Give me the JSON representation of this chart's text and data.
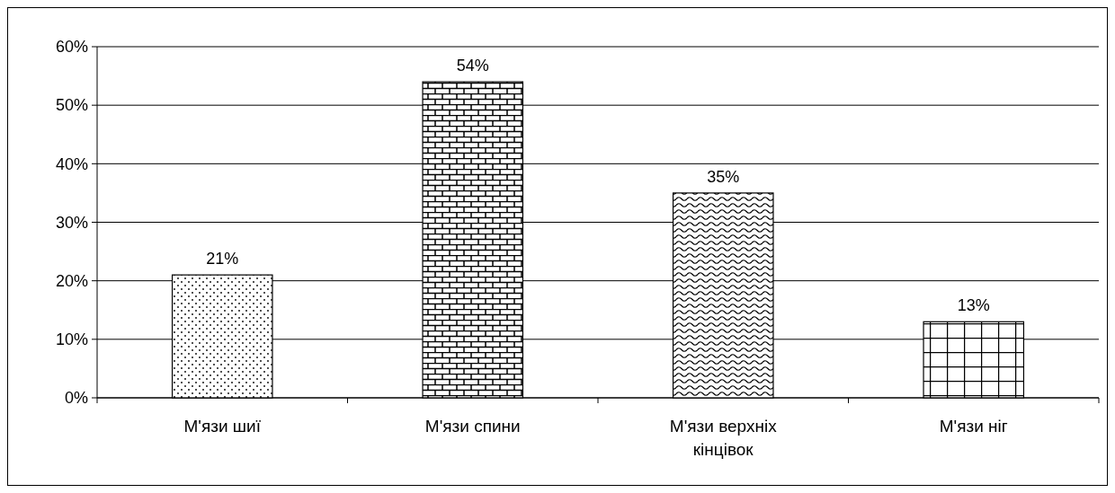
{
  "chart_data": {
    "type": "bar",
    "categories": [
      "М'язи шиї",
      "М'язи спини",
      "М'язи верхніх кінцівок",
      "М'язи ніг"
    ],
    "values": [
      21,
      54,
      35,
      13
    ],
    "colors": [
      "#000000",
      "#000000",
      "#000000",
      "#000000"
    ],
    "value_labels": [
      "21%",
      "54%",
      "35%",
      "13%"
    ],
    "ylim": [
      0,
      60
    ],
    "yticks": [
      {
        "value": 0,
        "label": "0%"
      },
      {
        "value": 10,
        "label": "10%"
      },
      {
        "value": 20,
        "label": "20%"
      },
      {
        "value": 30,
        "label": "30%"
      },
      {
        "value": 40,
        "label": "40%"
      },
      {
        "value": 50,
        "label": "50%"
      },
      {
        "value": 60,
        "label": "60%"
      }
    ],
    "grid": "y"
  }
}
